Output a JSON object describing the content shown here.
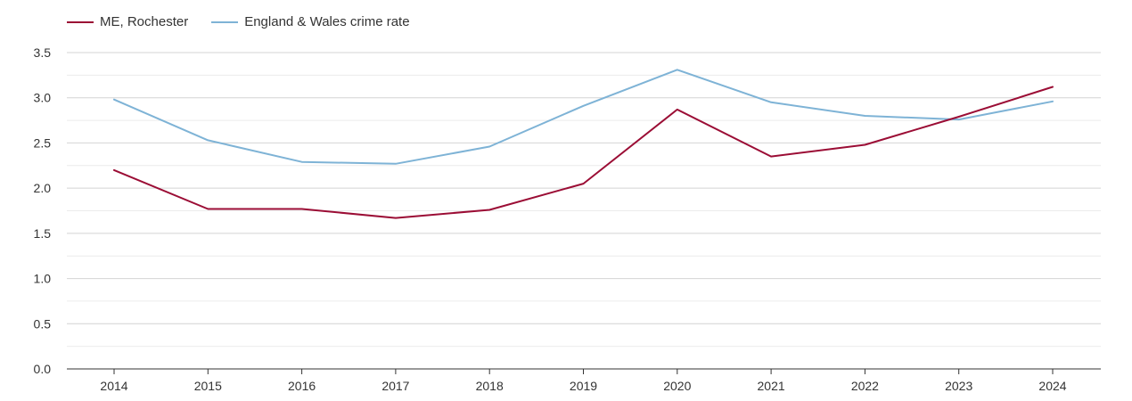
{
  "chart_data": {
    "type": "line",
    "title": "",
    "xlabel": "",
    "ylabel": "",
    "categories": [
      "2014",
      "2015",
      "2016",
      "2017",
      "2018",
      "2019",
      "2020",
      "2021",
      "2022",
      "2023",
      "2024"
    ],
    "ylim": [
      0,
      3.5
    ],
    "yticks": [
      "0.0",
      "0.5",
      "1.0",
      "1.5",
      "2.0",
      "2.5",
      "3.0",
      "3.5"
    ],
    "grid": true,
    "legend_position": "top-left",
    "series": [
      {
        "name": "ME, Rochester",
        "color": "#9b0d35",
        "values": [
          2.2,
          1.77,
          1.77,
          1.67,
          1.76,
          2.05,
          2.87,
          2.35,
          2.48,
          2.79,
          3.12
        ]
      },
      {
        "name": "England & Wales crime rate",
        "color": "#7eb3d6",
        "values": [
          2.98,
          2.53,
          2.29,
          2.27,
          2.46,
          2.91,
          3.31,
          2.95,
          2.8,
          2.76,
          2.96
        ]
      }
    ]
  }
}
